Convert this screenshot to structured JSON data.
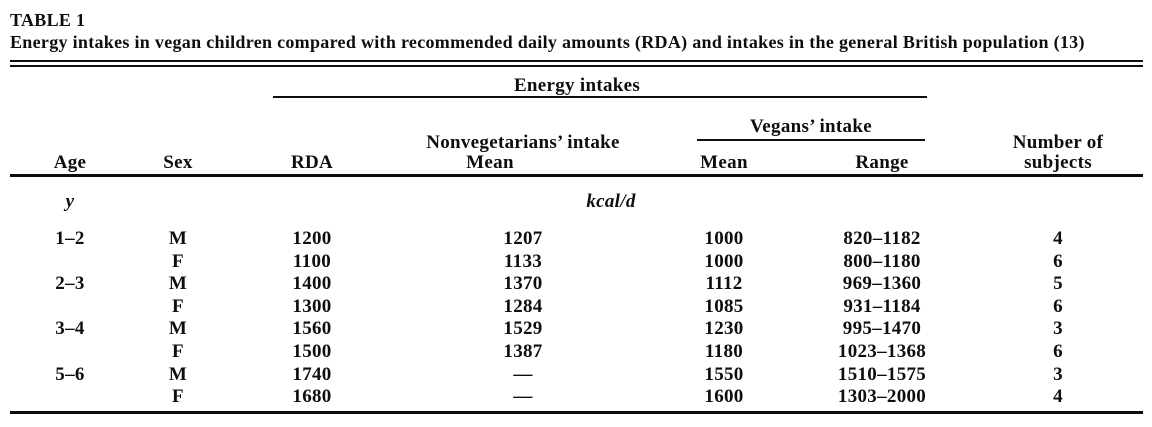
{
  "table": {
    "label": "TABLE 1",
    "caption": "Energy intakes in vegan children compared with recommended daily amounts (RDA) and intakes in the general British population (13)",
    "headers": {
      "energy_intakes": "Energy intakes",
      "vegans_intake": "Vegans’ intake",
      "nonvegetarians_intake": "Nonvegetarians’ intake",
      "nonveg_mean": "Mean",
      "age": "Age",
      "sex": "Sex",
      "rda": "RDA",
      "vegan_mean": "Mean",
      "vegan_range": "Range",
      "number_of": "Number of",
      "subjects": "subjects"
    },
    "units": {
      "age_unit": "y",
      "energy_unit": "kcal/d"
    },
    "rows": [
      {
        "age": "1–2",
        "sex": "M",
        "rda": "1200",
        "nonveg_mean": "1207",
        "vegan_mean": "1000",
        "vegan_range": "820–1182",
        "n": "4"
      },
      {
        "age": "",
        "sex": "F",
        "rda": "1100",
        "nonveg_mean": "1133",
        "vegan_mean": "1000",
        "vegan_range": "800–1180",
        "n": "6"
      },
      {
        "age": "2–3",
        "sex": "M",
        "rda": "1400",
        "nonveg_mean": "1370",
        "vegan_mean": "1112",
        "vegan_range": "969–1360",
        "n": "5"
      },
      {
        "age": "",
        "sex": "F",
        "rda": "1300",
        "nonveg_mean": "1284",
        "vegan_mean": "1085",
        "vegan_range": "931–1184",
        "n": "6"
      },
      {
        "age": "3–4",
        "sex": "M",
        "rda": "1560",
        "nonveg_mean": "1529",
        "vegan_mean": "1230",
        "vegan_range": "995–1470",
        "n": "3"
      },
      {
        "age": "",
        "sex": "F",
        "rda": "1500",
        "nonveg_mean": "1387",
        "vegan_mean": "1180",
        "vegan_range": "1023–1368",
        "n": "6"
      },
      {
        "age": "5–6",
        "sex": "M",
        "rda": "1740",
        "nonveg_mean": "—",
        "vegan_mean": "1550",
        "vegan_range": "1510–1575",
        "n": "3"
      },
      {
        "age": "",
        "sex": "F",
        "rda": "1680",
        "nonveg_mean": "—",
        "vegan_mean": "1600",
        "vegan_range": "1303–2000",
        "n": "4"
      }
    ]
  },
  "chart_data": {
    "type": "table",
    "title": "TABLE 1. Energy intakes in vegan children compared with recommended daily amounts (RDA) and intakes in the general British population (13)",
    "columns": [
      "Age (y)",
      "Sex",
      "RDA (kcal/d)",
      "Nonvegetarians' intake Mean (kcal/d)",
      "Vegans' intake Mean (kcal/d)",
      "Vegans' intake Range (kcal/d)",
      "Number of subjects"
    ],
    "rows": [
      [
        "1–2",
        "M",
        1200,
        1207,
        1000,
        "820–1182",
        4
      ],
      [
        "1–2",
        "F",
        1100,
        1133,
        1000,
        "800–1180",
        6
      ],
      [
        "2–3",
        "M",
        1400,
        1370,
        1112,
        "969–1360",
        5
      ],
      [
        "2–3",
        "F",
        1300,
        1284,
        1085,
        "931–1184",
        6
      ],
      [
        "3–4",
        "M",
        1560,
        1529,
        1230,
        "995–1470",
        3
      ],
      [
        "3–4",
        "F",
        1500,
        1387,
        1180,
        "1023–1368",
        6
      ],
      [
        "5–6",
        "M",
        1740,
        null,
        1550,
        "1510–1575",
        3
      ],
      [
        "5–6",
        "F",
        1680,
        null,
        1600,
        "1303–2000",
        4
      ]
    ],
    "ink_color": "#0e0e0e",
    "background_color": "#ffffff"
  }
}
